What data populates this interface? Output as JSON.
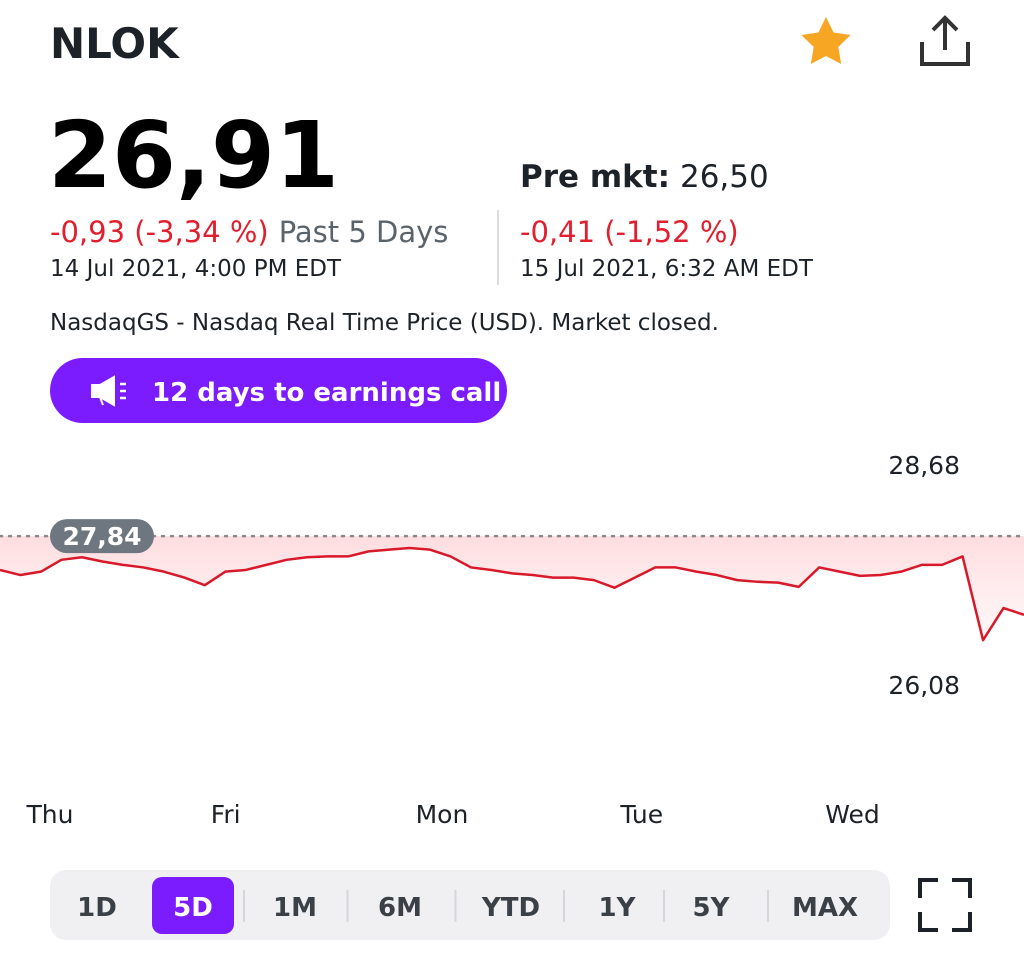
{
  "header": {
    "ticker": "NLOK"
  },
  "quote": {
    "price": "26,91",
    "change": "-0,93 (-3,34 %)",
    "period": "Past 5 Days",
    "time": "14 Jul 2021, 4:00 PM EDT",
    "premarket_label": "Pre mkt:",
    "premarket_price": "26,50",
    "premarket_change": "-0,41 (-1,52 %)",
    "premarket_time": "15 Jul 2021, 6:32 AM EDT"
  },
  "source": "NasdaqGS - Nasdaq Real Time Price (USD). Market closed.",
  "earnings_button": "12 days to earnings call",
  "chart_data": {
    "type": "line",
    "color": "#d7192a",
    "categories": [
      null,
      "Thu",
      null,
      null,
      null,
      null,
      null,
      null,
      null,
      null,
      "Fri",
      null,
      null,
      null,
      null,
      null,
      null,
      null,
      null,
      null,
      "Mon",
      null,
      null,
      null,
      null,
      null,
      null,
      null,
      null,
      null,
      "Tue",
      null,
      null,
      null,
      null,
      null,
      null,
      null,
      null,
      null,
      "Wed",
      null,
      null,
      null,
      null,
      null,
      null,
      null,
      null,
      null,
      null
    ],
    "values": [
      27.44,
      27.38,
      27.42,
      27.56,
      27.59,
      27.54,
      27.5,
      27.47,
      27.42,
      27.35,
      27.26,
      27.42,
      27.44,
      27.5,
      27.56,
      27.59,
      27.6,
      27.6,
      27.66,
      27.68,
      27.7,
      27.68,
      27.6,
      27.47,
      27.44,
      27.4,
      27.38,
      27.35,
      27.35,
      27.32,
      27.23,
      27.35,
      27.47,
      27.47,
      27.42,
      27.38,
      27.32,
      27.3,
      27.29,
      27.24,
      27.47,
      27.42,
      27.37,
      27.38,
      27.42,
      27.5,
      27.5,
      27.6,
      26.61,
      26.99,
      26.91
    ],
    "ylim": [
      25.8,
      29.0
    ],
    "yticks": [
      {
        "value": 28.68,
        "label": "28,68"
      },
      {
        "value": 26.08,
        "label": "26,08"
      }
    ],
    "reference_line": {
      "value": 27.84,
      "label": "27,84"
    },
    "grid": false
  },
  "ranges": {
    "options": [
      "1D",
      "5D",
      "1M",
      "6M",
      "YTD",
      "1Y",
      "5Y",
      "MAX"
    ],
    "selected": 1
  }
}
